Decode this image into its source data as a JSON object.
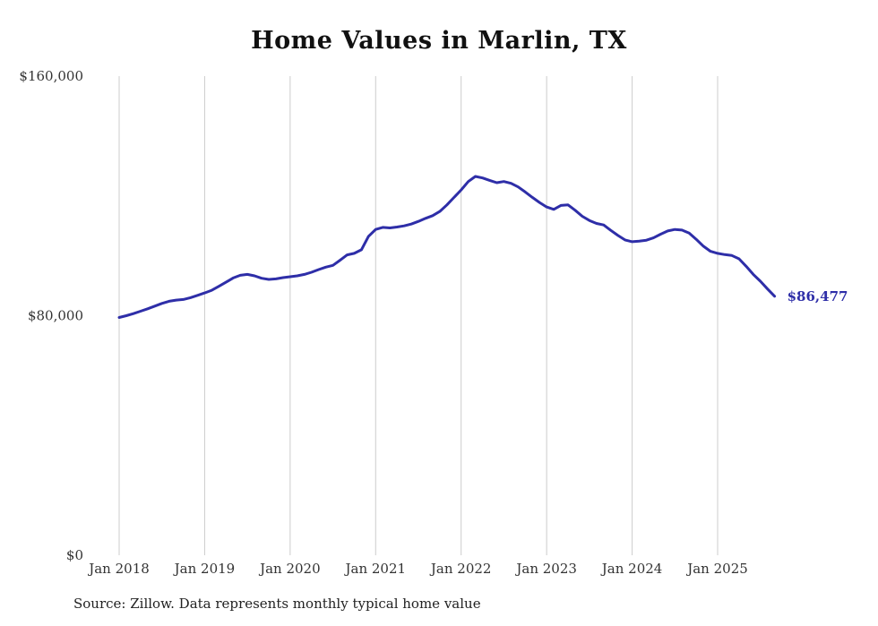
{
  "chart_data": {
    "type": "line",
    "title": "Home Values in Marlin, TX",
    "xlabel": "",
    "ylabel": "",
    "ylim": [
      0,
      160000
    ],
    "grid": "vertical-only",
    "x_start": "Jan 2018",
    "x_frequency": "monthly",
    "x_tick_labels": [
      "Jan 2018",
      "Jan 2019",
      "Jan 2020",
      "Jan 2021",
      "Jan 2022",
      "Jan 2023",
      "Jan 2024",
      "Jan 2025"
    ],
    "y_ticks": [
      0,
      80000,
      160000
    ],
    "y_tick_labels": [
      "$0",
      "$80,000",
      "$160,000"
    ],
    "series": [
      {
        "name": "Monthly typical home value",
        "values": [
          79400,
          80000,
          80700,
          81500,
          82300,
          83200,
          84100,
          84800,
          85200,
          85400,
          86000,
          86800,
          87600,
          88500,
          89800,
          91200,
          92600,
          93500,
          93800,
          93300,
          92500,
          92100,
          92300,
          92700,
          93000,
          93300,
          93800,
          94500,
          95400,
          96200,
          96800,
          98500,
          100300,
          100800,
          102000,
          106500,
          108800,
          109500,
          109300,
          109600,
          110000,
          110600,
          111500,
          112500,
          113400,
          114800,
          117000,
          119500,
          122000,
          124800,
          126500,
          126000,
          125200,
          124400,
          124800,
          124200,
          123000,
          121300,
          119500,
          117800,
          116300,
          115500,
          116800,
          117000,
          115200,
          113200,
          111800,
          110800,
          110300,
          108500,
          106800,
          105300,
          104700,
          104900,
          105200,
          106000,
          107200,
          108300,
          108800,
          108600,
          107600,
          105500,
          103200,
          101500,
          100800,
          100400,
          100100,
          99000,
          96500,
          93800,
          91500,
          88900,
          86477
        ]
      }
    ],
    "end_label": "$86,477",
    "line_color": "#2e2ea8",
    "end_label_color": "#2e2ea8",
    "grid_color": "#cccccc",
    "tick_label_color": "#333333",
    "source": "Source: Zillow. Data represents monthly typical home value",
    "legend": "none"
  }
}
